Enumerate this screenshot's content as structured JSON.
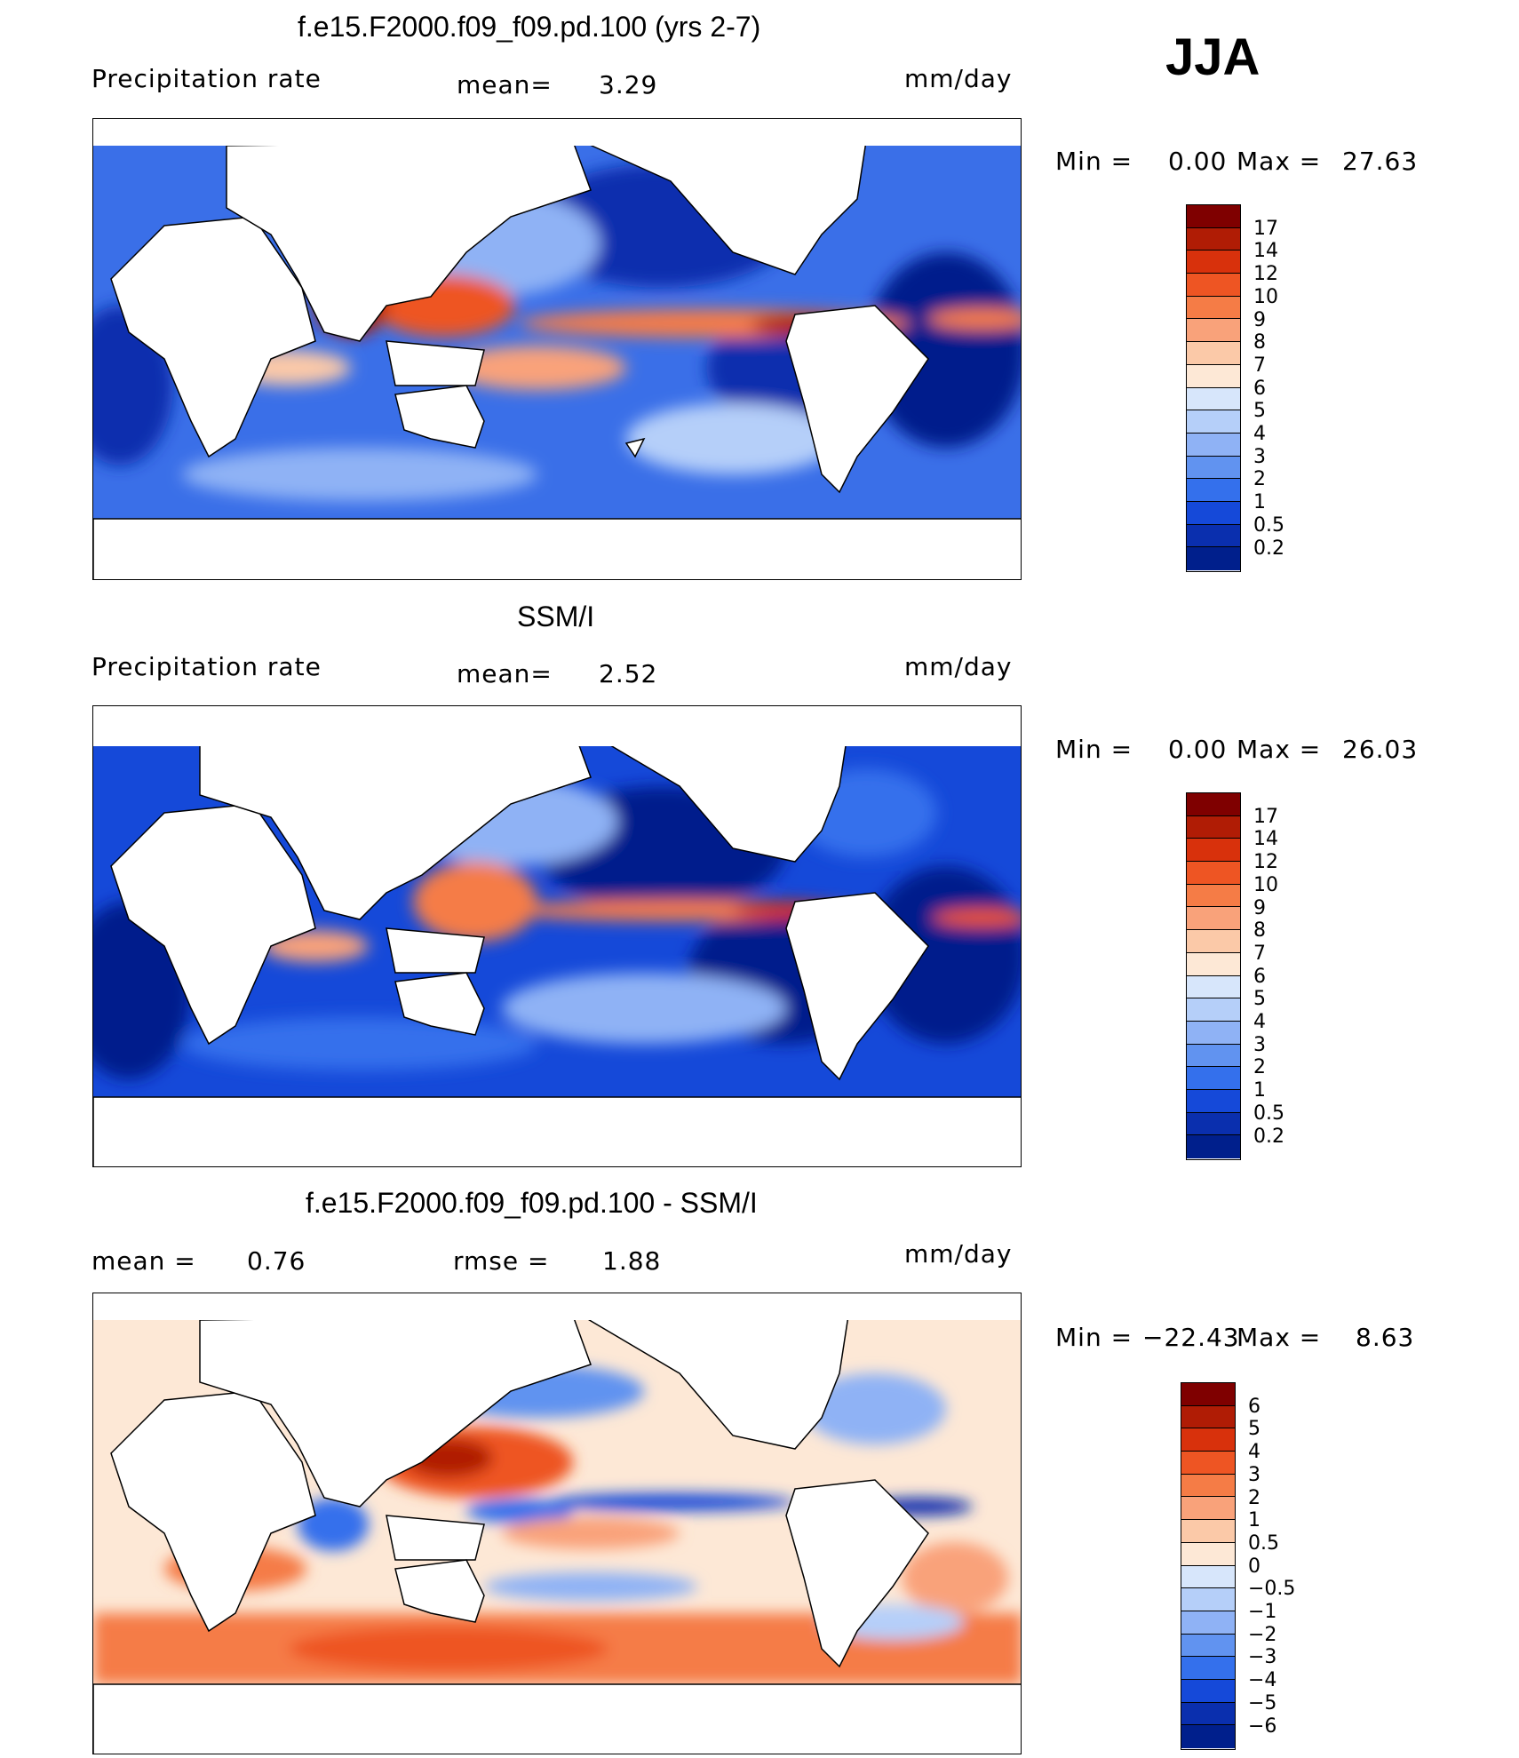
{
  "season": "JJA",
  "chart_data": [
    {
      "type": "heatmap",
      "title": "f.e15.F2000.f09_f09.pd.100 (yrs 2-7)",
      "variable": "Precipitation rate",
      "mean_label": "mean=",
      "mean": "3.29",
      "units": "mm/day",
      "min_label": "Min =",
      "min": "0.00",
      "max_label": "Max =",
      "max": "27.63",
      "levels": [
        "17",
        "14",
        "12",
        "10",
        "9",
        "8",
        "7",
        "6",
        "5",
        "4",
        "3",
        "2",
        "1",
        "0.5",
        "0.2"
      ],
      "colors": [
        "#7f0000",
        "#b01c05",
        "#d8310c",
        "#ee5523",
        "#f57c46",
        "#f9a27a",
        "#fbc9a8",
        "#fde8d6",
        "#d7e6fb",
        "#b5cff9",
        "#8fb2f5",
        "#6193f0",
        "#3470ec",
        "#1549d9",
        "#0a2fae",
        "#001f8c"
      ]
    },
    {
      "type": "heatmap",
      "title": "SSM/I",
      "variable": "Precipitation rate",
      "mean_label": "mean=",
      "mean": "2.52",
      "units": "mm/day",
      "min_label": "Min =",
      "min": "0.00",
      "max_label": "Max =",
      "max": "26.03",
      "levels": [
        "17",
        "14",
        "12",
        "10",
        "9",
        "8",
        "7",
        "6",
        "5",
        "4",
        "3",
        "2",
        "1",
        "0.5",
        "0.2"
      ],
      "colors": [
        "#7f0000",
        "#b01c05",
        "#d8310c",
        "#ee5523",
        "#f57c46",
        "#f9a27a",
        "#fbc9a8",
        "#fde8d6",
        "#d7e6fb",
        "#b5cff9",
        "#8fb2f5",
        "#6193f0",
        "#3470ec",
        "#1549d9",
        "#0a2fae",
        "#001f8c"
      ]
    },
    {
      "type": "heatmap",
      "title": "f.e15.F2000.f09_f09.pd.100 - SSM/I",
      "mean_label": "mean =",
      "mean": "0.76",
      "rmse_label": "rmse =",
      "rmse": "1.88",
      "units": "mm/day",
      "min_label": "Min =",
      "min": "−22.43",
      "max_label": "Max =",
      "max": "8.63",
      "levels": [
        "6",
        "5",
        "4",
        "3",
        "2",
        "1",
        "0.5",
        "0",
        "−0.5",
        "−1",
        "−2",
        "−3",
        "−4",
        "−5",
        "−6"
      ],
      "colors": [
        "#7f0000",
        "#b01c05",
        "#d8310c",
        "#ee5523",
        "#f57c46",
        "#f9a27a",
        "#fbc9a8",
        "#fde8d6",
        "#d7e6fb",
        "#b5cff9",
        "#8fb2f5",
        "#6193f0",
        "#3470ec",
        "#1549d9",
        "#0a2fae",
        "#001f8c"
      ]
    }
  ]
}
